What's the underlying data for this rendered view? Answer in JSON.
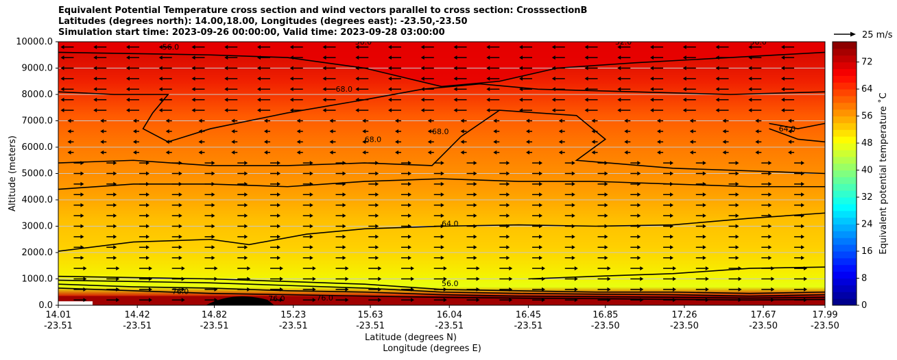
{
  "title": {
    "line1": "Equivalent Potential Temperature cross section and wind vectors parallel to cross section: CrosssectionB",
    "line2": "Latitudes (degrees north): 14.00,18.00, Longitudes (degrees east): -23.50,-23.50",
    "line3": "Simulation start time: 2023-09-26 00:00:00, Valid time: 2023-09-28 03:00:00"
  },
  "chart_data": {
    "type": "heatmap",
    "xlabel_lat": "Latitude (degrees N)",
    "xlabel_lon": "Longitude (degrees E)",
    "ylabel": "Altitude (meters)",
    "ylim": [
      0,
      10000
    ],
    "y_ticks": [
      "0.0",
      "1000.0",
      "2000.0",
      "3000.0",
      "4000.0",
      "5000.0",
      "6000.0",
      "7000.0",
      "8000.0",
      "9000.0",
      "10000.0"
    ],
    "y_tick_values": [
      0,
      1000,
      2000,
      3000,
      4000,
      5000,
      6000,
      7000,
      8000,
      9000,
      10000
    ],
    "x_ticks_lat": [
      "14.01",
      "14.42",
      "14.82",
      "15.23",
      "15.63",
      "16.04",
      "16.45",
      "16.85",
      "17.26",
      "17.67",
      "17.99"
    ],
    "x_ticks_lon": [
      "-23.51",
      "-23.51",
      "-23.51",
      "-23.51",
      "-23.51",
      "-23.51",
      "-23.51",
      "-23.50",
      "-23.50",
      "-23.50",
      "-23.50"
    ],
    "x_tick_values": [
      14.01,
      14.42,
      14.82,
      15.23,
      15.63,
      16.04,
      16.45,
      16.85,
      17.26,
      17.67,
      17.99
    ],
    "xlim": [
      14.01,
      17.99
    ],
    "colorbar": {
      "label": "Equivalent potential temperature ˚C",
      "range": [
        0,
        78
      ],
      "ticks": [
        "0",
        "8",
        "16",
        "24",
        "32",
        "40",
        "48",
        "56",
        "64",
        "72"
      ],
      "tick_values": [
        0,
        8,
        16,
        24,
        32,
        40,
        48,
        56,
        64,
        72
      ],
      "colormap": "jet"
    },
    "quiver_key": "25 m/s",
    "grid": "horizontal",
    "contour_labels": [
      "76.0",
      "68.0",
      "68.0",
      "68.0",
      "64.0",
      "64.0",
      "56.0",
      "56.0",
      "56.0",
      "52.0",
      "76.0",
      "76.0",
      "56.0"
    ],
    "contours": [
      {
        "level": 68,
        "points": [
          [
            14.01,
            9600
          ],
          [
            14.4,
            9550
          ],
          [
            14.8,
            9500
          ],
          [
            15.2,
            9400
          ],
          [
            15.6,
            9000
          ],
          [
            16.0,
            8300
          ],
          [
            16.3,
            8500
          ],
          [
            16.6,
            9000
          ],
          [
            17.0,
            9200
          ],
          [
            17.5,
            9400
          ],
          [
            17.99,
            9600
          ]
        ]
      },
      {
        "level": 64,
        "points": [
          [
            14.01,
            8100
          ],
          [
            14.3,
            8000
          ],
          [
            14.58,
            8000
          ],
          [
            14.5,
            7300
          ],
          [
            14.45,
            6700
          ],
          [
            14.58,
            6200
          ],
          [
            14.8,
            6700
          ],
          [
            15.2,
            7300
          ],
          [
            15.6,
            7800
          ],
          [
            15.9,
            8200
          ],
          [
            16.2,
            8400
          ],
          [
            16.5,
            8200
          ],
          [
            17.0,
            8100
          ],
          [
            17.5,
            8000
          ],
          [
            17.99,
            8100
          ]
        ]
      },
      {
        "level": 60,
        "points": [
          [
            14.01,
            5400
          ],
          [
            14.4,
            5500
          ],
          [
            14.8,
            5300
          ],
          [
            15.2,
            5300
          ],
          [
            15.6,
            5400
          ],
          [
            15.95,
            5300
          ],
          [
            16.1,
            6400
          ],
          [
            16.3,
            7400
          ],
          [
            16.7,
            7200
          ],
          [
            16.85,
            6300
          ],
          [
            16.7,
            5500
          ],
          [
            17.2,
            5200
          ],
          [
            17.99,
            5000
          ]
        ]
      },
      {
        "level": 58,
        "points": [
          [
            14.01,
            4400
          ],
          [
            14.4,
            4600
          ],
          [
            14.8,
            4600
          ],
          [
            15.2,
            4500
          ],
          [
            15.6,
            4700
          ],
          [
            16.0,
            4800
          ],
          [
            16.4,
            4700
          ],
          [
            16.8,
            4700
          ],
          [
            17.2,
            4600
          ],
          [
            17.6,
            4500
          ],
          [
            17.99,
            4500
          ]
        ]
      },
      {
        "level": 56,
        "points": [
          [
            14.01,
            2050
          ],
          [
            14.4,
            2400
          ],
          [
            14.8,
            2500
          ],
          [
            15.0,
            2300
          ],
          [
            15.3,
            2700
          ],
          [
            15.6,
            2900
          ],
          [
            16.0,
            3000
          ],
          [
            16.4,
            3050
          ],
          [
            16.8,
            3000
          ],
          [
            17.2,
            3050
          ],
          [
            17.6,
            3300
          ],
          [
            17.99,
            3500
          ]
        ]
      },
      {
        "level": 52,
        "points": [
          [
            16.45,
            1000
          ],
          [
            16.8,
            1100
          ],
          [
            17.2,
            1200
          ],
          [
            17.6,
            1400
          ],
          [
            17.99,
            1450
          ]
        ]
      },
      {
        "level": 62,
        "points": [
          [
            17.7,
            6900
          ],
          [
            17.85,
            6700
          ],
          [
            17.99,
            6900
          ]
        ]
      },
      {
        "level": 64,
        "points": [
          [
            17.7,
            6700
          ],
          [
            17.85,
            6300
          ],
          [
            17.99,
            6200
          ]
        ]
      },
      {
        "level": 60,
        "points": [
          [
            14.01,
            1100
          ],
          [
            14.4,
            1050
          ],
          [
            14.8,
            1000
          ],
          [
            15.2,
            900
          ],
          [
            15.6,
            800
          ],
          [
            16.0,
            600
          ],
          [
            16.4,
            550
          ],
          [
            16.8,
            500
          ],
          [
            17.2,
            500
          ],
          [
            17.6,
            450
          ],
          [
            17.99,
            500
          ]
        ]
      },
      {
        "level": 64,
        "points": [
          [
            14.01,
            950
          ],
          [
            14.4,
            900
          ],
          [
            14.8,
            850
          ],
          [
            15.2,
            750
          ],
          [
            15.6,
            650
          ],
          [
            16.0,
            500
          ],
          [
            16.4,
            450
          ],
          [
            16.8,
            420
          ],
          [
            17.2,
            400
          ],
          [
            17.6,
            350
          ],
          [
            17.99,
            400
          ]
        ]
      },
      {
        "level": 68,
        "points": [
          [
            14.01,
            800
          ],
          [
            14.4,
            700
          ],
          [
            14.8,
            650
          ],
          [
            15.2,
            550
          ],
          [
            15.6,
            500
          ],
          [
            16.0,
            400
          ],
          [
            16.4,
            350
          ],
          [
            16.8,
            330
          ],
          [
            17.2,
            300
          ],
          [
            17.6,
            270
          ],
          [
            17.99,
            300
          ]
        ]
      },
      {
        "level": 72,
        "points": [
          [
            14.01,
            650
          ],
          [
            14.4,
            550
          ],
          [
            14.8,
            450
          ],
          [
            15.2,
            400
          ],
          [
            15.6,
            350
          ],
          [
            16.0,
            300
          ],
          [
            16.4,
            270
          ],
          [
            16.8,
            250
          ],
          [
            17.2,
            220
          ],
          [
            17.6,
            200
          ],
          [
            17.99,
            220
          ]
        ]
      }
    ]
  }
}
